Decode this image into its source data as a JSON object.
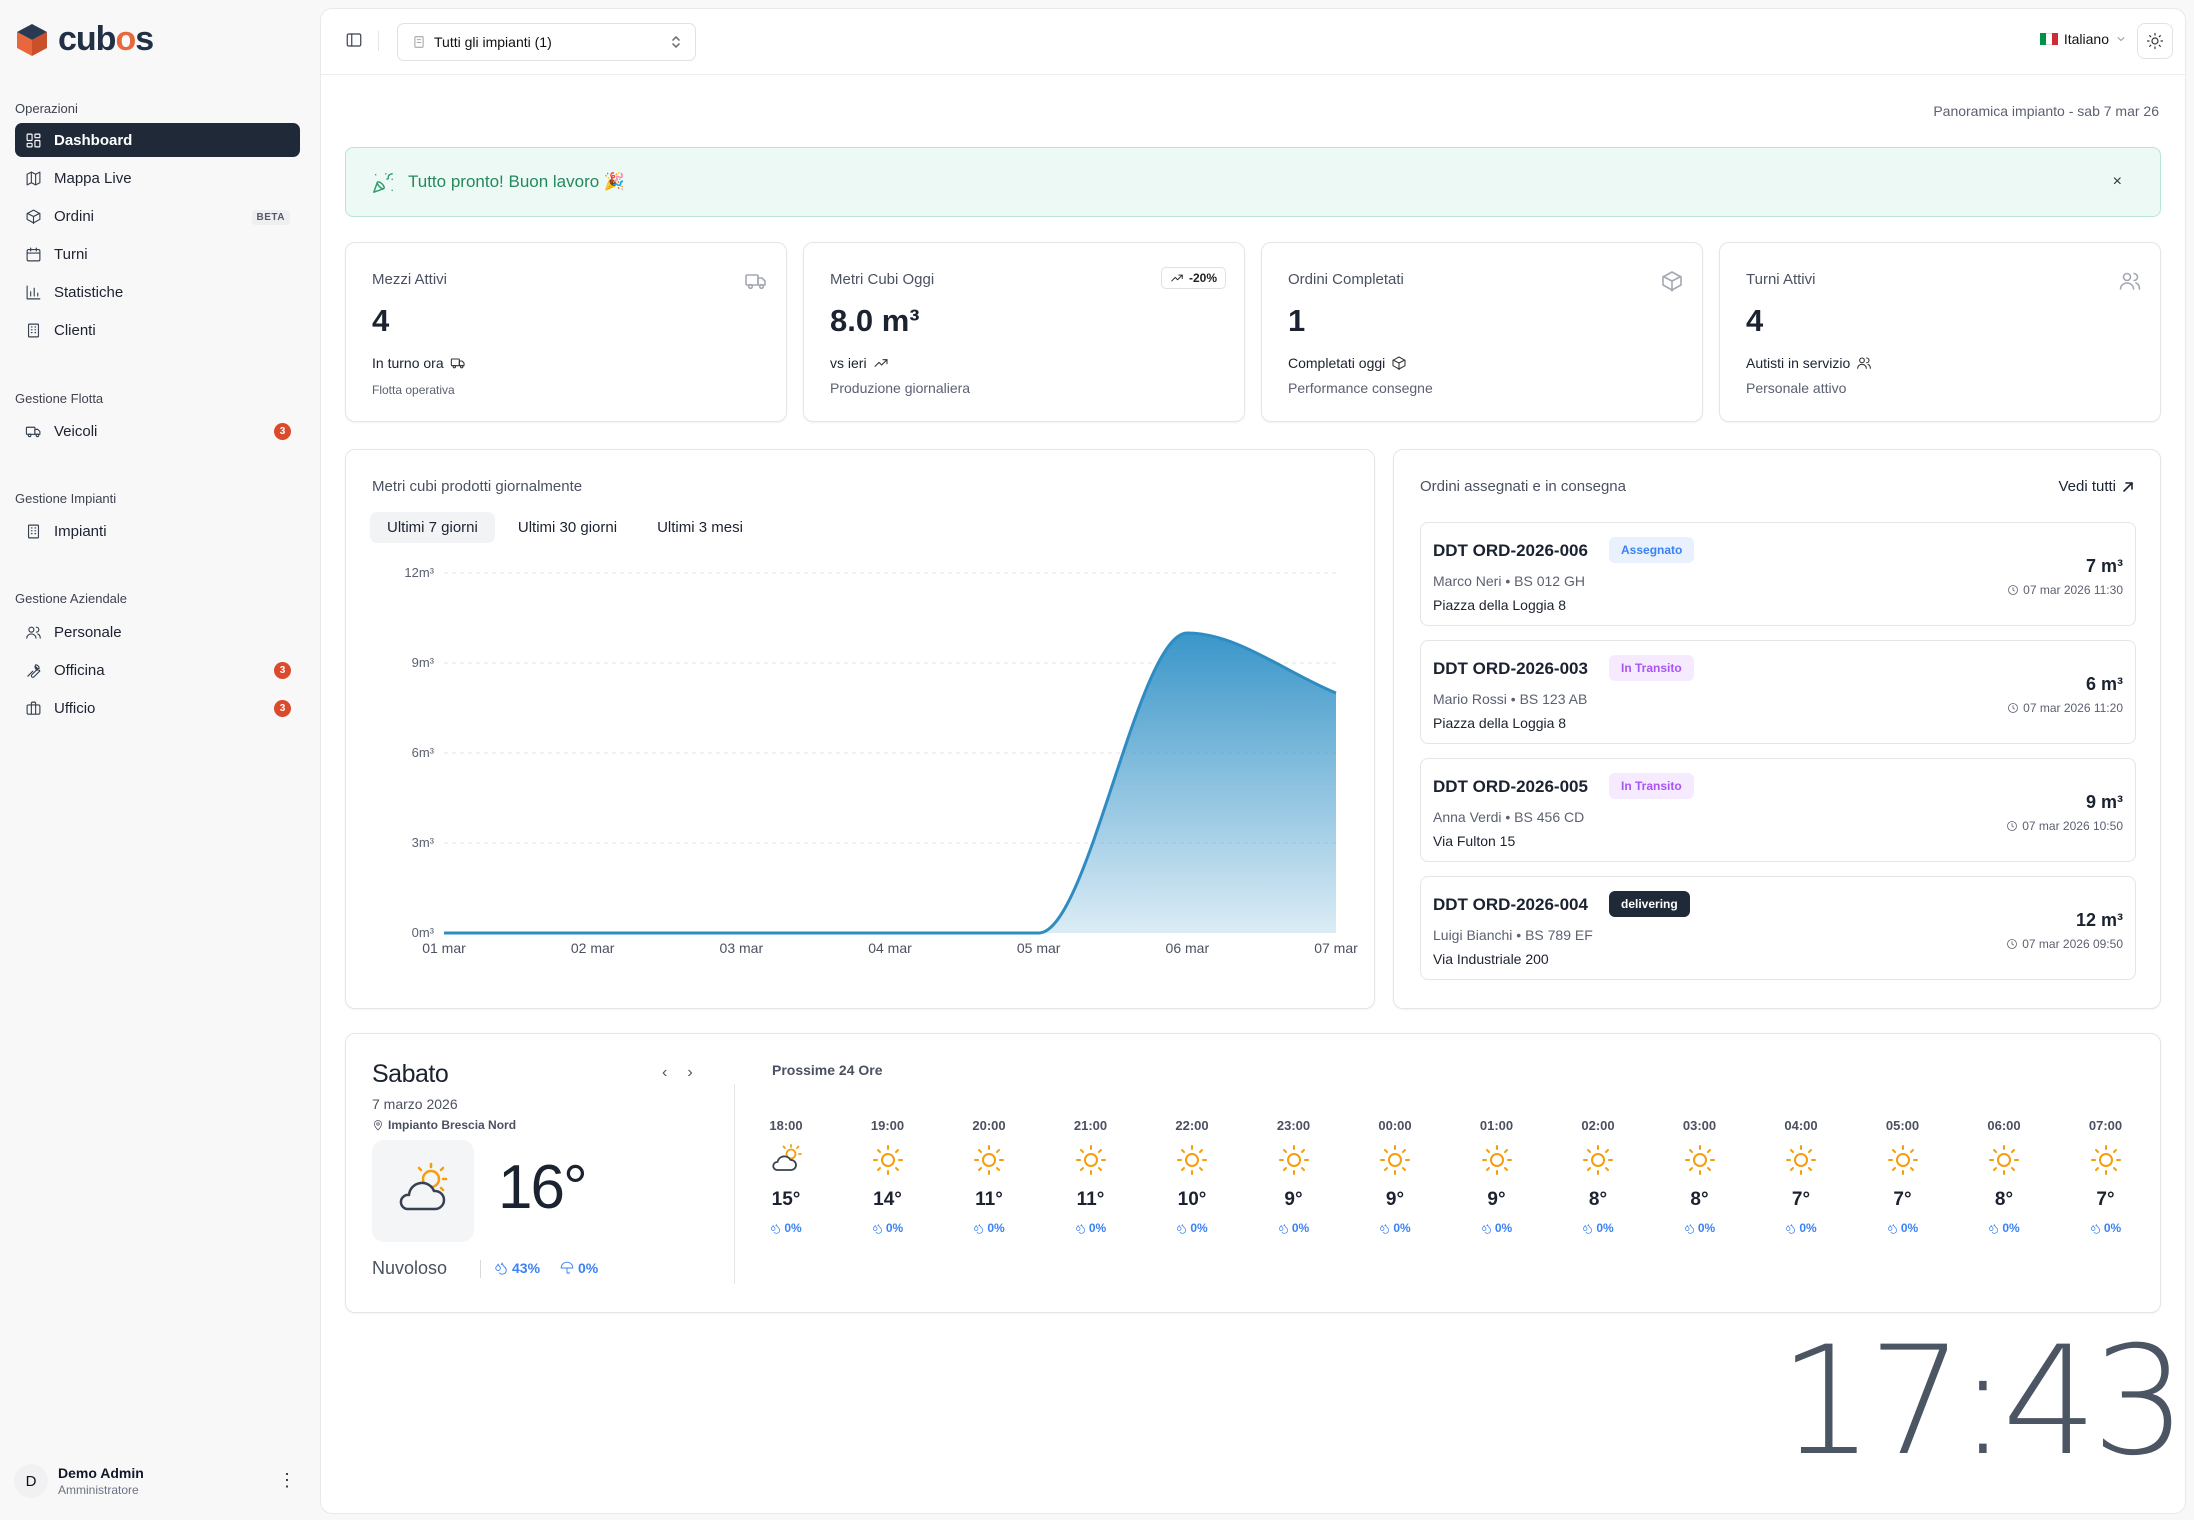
{
  "brand": {
    "name_prefix": "cub",
    "name_accent": "o",
    "name_suffix": "s"
  },
  "sidebar": {
    "sections": [
      {
        "title": "Operazioni",
        "items": [
          {
            "label": "Dashboard",
            "icon": "dashboard-icon",
            "active": true
          },
          {
            "label": "Mappa Live",
            "icon": "map-icon"
          },
          {
            "label": "Ordini",
            "icon": "box-icon",
            "badge": "BETA"
          },
          {
            "label": "Turni",
            "icon": "calendar-icon"
          },
          {
            "label": "Statistiche",
            "icon": "chart-icon"
          },
          {
            "label": "Clienti",
            "icon": "building-icon"
          }
        ]
      },
      {
        "title": "Gestione Flotta",
        "items": [
          {
            "label": "Veicoli",
            "icon": "truck-icon",
            "count": "3"
          }
        ]
      },
      {
        "title": "Gestione Impianti",
        "items": [
          {
            "label": "Impianti",
            "icon": "building-icon"
          }
        ]
      },
      {
        "title": "Gestione Aziendale",
        "items": [
          {
            "label": "Personale",
            "icon": "users-icon"
          },
          {
            "label": "Officina",
            "icon": "wrench-icon",
            "count": "3"
          },
          {
            "label": "Ufficio",
            "icon": "briefcase-icon",
            "count": "3"
          }
        ]
      }
    ],
    "user": {
      "initial": "D",
      "name": "Demo Admin",
      "role": "Amministratore"
    }
  },
  "topbar": {
    "plant_select": "Tutti gli impianti (1)",
    "language": "Italiano"
  },
  "overview_label": "Panoramica impianto - sab 7 mar 26",
  "banner": {
    "text": "Tutto pronto! Buon lavoro 🎉",
    "close": "×"
  },
  "stats": {
    "active_vehicles": {
      "title": "Mezzi Attivi",
      "value": "4",
      "sub": "In turno ora",
      "desc": "Flotta operativa"
    },
    "cubic_today": {
      "title": "Metri Cubi Oggi",
      "value": "8.0 m³",
      "trend": "-20%",
      "sub": "vs ieri",
      "desc": "Produzione giornaliera"
    },
    "orders_done": {
      "title": "Ordini Completati",
      "value": "1",
      "sub": "Completati oggi",
      "desc": "Performance consegne"
    },
    "active_shifts": {
      "title": "Turni Attivi",
      "value": "4",
      "sub": "Autisti in servizio",
      "desc": "Personale attivo"
    }
  },
  "chart": {
    "title": "Metri cubi prodotti giornalmente",
    "tabs": [
      "Ultimi 7 giorni",
      "Ultimi 30 giorni",
      "Ultimi 3 mesi"
    ],
    "active_tab": 0
  },
  "chart_data": {
    "type": "area",
    "title": "Metri cubi prodotti giornalmente",
    "categories": [
      "01 mar",
      "02 mar",
      "03 mar",
      "04 mar",
      "05 mar",
      "06 mar",
      "07 mar"
    ],
    "values": [
      0,
      0,
      0,
      0,
      0,
      10,
      8
    ],
    "yticks": [
      "0m³",
      "3m³",
      "6m³",
      "9m³",
      "12m³"
    ],
    "ylim": [
      0,
      12
    ],
    "grid": true,
    "color": "#3a96c9"
  },
  "orders": {
    "title": "Ordini assegnati e in consegna",
    "see_all": "Vedi tutti",
    "items": [
      {
        "id": "DDT ORD-2026-006",
        "status": "Assegnato",
        "status_type": "assegnato",
        "meta": "Marco Neri • BS 012 GH",
        "address": "Piazza della Loggia 8",
        "qty": "7 m³",
        "time": "07 mar 2026 11:30"
      },
      {
        "id": "DDT ORD-2026-003",
        "status": "In Transito",
        "status_type": "transito",
        "meta": "Mario Rossi • BS 123 AB",
        "address": "Piazza della Loggia 8",
        "qty": "6 m³",
        "time": "07 mar 2026 11:20"
      },
      {
        "id": "DDT ORD-2026-005",
        "status": "In Transito",
        "status_type": "transito",
        "meta": "Anna Verdi • BS 456 CD",
        "address": "Via Fulton 15",
        "qty": "9 m³",
        "time": "07 mar 2026 10:50"
      },
      {
        "id": "DDT ORD-2026-004",
        "status": "delivering",
        "status_type": "delivering",
        "meta": "Luigi Bianchi • BS 789 EF",
        "address": "Via Industriale 200",
        "qty": "12 m³",
        "time": "07 mar 2026 09:50"
      }
    ]
  },
  "weather": {
    "day": "Sabato",
    "date": "7 marzo 2026",
    "location": "Impianto Brescia Nord",
    "temp": "16°",
    "condition": "Nuvoloso",
    "humidity": "43%",
    "rain": "0%",
    "next_title": "Prossime 24 Ore",
    "hours": [
      {
        "time": "18:00",
        "temp": "15°",
        "rain": "0%",
        "icon": "cloud-sun"
      },
      {
        "time": "19:00",
        "temp": "14°",
        "rain": "0%",
        "icon": "sun"
      },
      {
        "time": "20:00",
        "temp": "11°",
        "rain": "0%",
        "icon": "sun"
      },
      {
        "time": "21:00",
        "temp": "11°",
        "rain": "0%",
        "icon": "sun"
      },
      {
        "time": "22:00",
        "temp": "10°",
        "rain": "0%",
        "icon": "sun"
      },
      {
        "time": "23:00",
        "temp": "9°",
        "rain": "0%",
        "icon": "sun"
      },
      {
        "time": "00:00",
        "temp": "9°",
        "rain": "0%",
        "icon": "sun"
      },
      {
        "time": "01:00",
        "temp": "9°",
        "rain": "0%",
        "icon": "sun"
      },
      {
        "time": "02:00",
        "temp": "8°",
        "rain": "0%",
        "icon": "sun"
      },
      {
        "time": "03:00",
        "temp": "8°",
        "rain": "0%",
        "icon": "sun"
      },
      {
        "time": "04:00",
        "temp": "7°",
        "rain": "0%",
        "icon": "sun"
      },
      {
        "time": "05:00",
        "temp": "7°",
        "rain": "0%",
        "icon": "sun"
      },
      {
        "time": "06:00",
        "temp": "8°",
        "rain": "0%",
        "icon": "sun"
      },
      {
        "time": "07:00",
        "temp": "7°",
        "rain": "0%",
        "icon": "sun"
      }
    ]
  },
  "clock": "17:43"
}
